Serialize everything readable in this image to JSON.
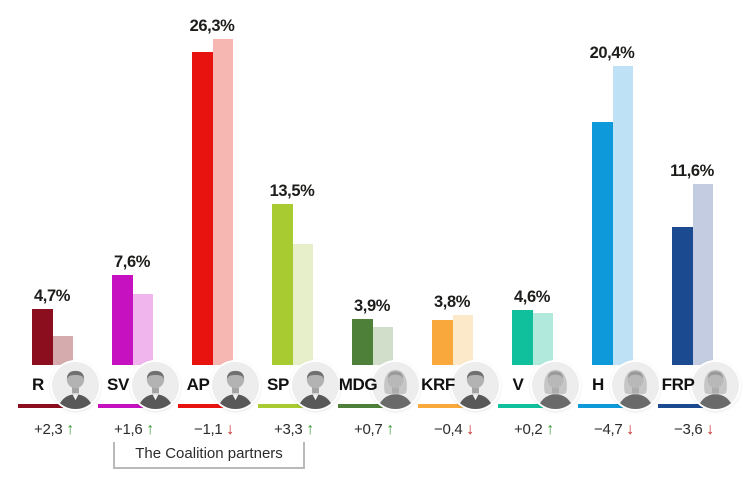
{
  "chart_data": {
    "type": "bar",
    "title": "",
    "unit": "%",
    "decimal_separator": ",",
    "layout": {
      "axes_visible": false,
      "grid": false,
      "legend": "none",
      "bars_per_group": 2,
      "bar_meaning": [
        "current poll value",
        "previous (lighter) value"
      ]
    },
    "ylim": [
      0,
      28
    ],
    "parties": [
      {
        "abbr": "R",
        "value": 4.7,
        "value_label": "4,7%",
        "previous": 2.4,
        "change_label": "+2,3",
        "trend": "up",
        "color": "#8b0e1e",
        "color_light": "#d6abae",
        "portrait": "man"
      },
      {
        "abbr": "SV",
        "value": 7.6,
        "value_label": "7,6%",
        "previous": 6.0,
        "change_label": "+1,6",
        "trend": "up",
        "color": "#c511c0",
        "color_light": "#f0b5ec",
        "portrait": "man"
      },
      {
        "abbr": "AP",
        "value": 26.3,
        "value_label": "26,3%",
        "previous": 27.4,
        "change_label": "−1,1",
        "trend": "down",
        "color": "#e8130f",
        "color_light": "#f6b7b2",
        "portrait": "man"
      },
      {
        "abbr": "SP",
        "value": 13.5,
        "value_label": "13,5%",
        "previous": 10.2,
        "change_label": "+3,3",
        "trend": "up",
        "color": "#a8cb32",
        "color_light": "#e6efc9",
        "portrait": "man"
      },
      {
        "abbr": "MDG",
        "value": 3.9,
        "value_label": "3,9%",
        "previous": 3.2,
        "change_label": "+0,7",
        "trend": "up",
        "color": "#4e8039",
        "color_light": "#d0deca",
        "portrait": "woman"
      },
      {
        "abbr": "KRF",
        "value": 3.8,
        "value_label": "3,8%",
        "previous": 4.2,
        "change_label": "−0,4",
        "trend": "down",
        "color": "#f9a93c",
        "color_light": "#fce9c9",
        "portrait": "man"
      },
      {
        "abbr": "V",
        "value": 4.6,
        "value_label": "4,6%",
        "previous": 4.4,
        "change_label": "+0,2",
        "trend": "up",
        "color": "#10bf9b",
        "color_light": "#b1eadc",
        "portrait": "woman"
      },
      {
        "abbr": "H",
        "value": 20.4,
        "value_label": "20,4%",
        "previous": 25.1,
        "change_label": "−4,7",
        "trend": "down",
        "color": "#0e9ada",
        "color_light": "#bfe1f6",
        "portrait": "woman"
      },
      {
        "abbr": "FRP",
        "value": 11.6,
        "value_label": "11,6%",
        "previous": 15.2,
        "change_label": "−3,6",
        "trend": "down",
        "color": "#1c4a90",
        "color_light": "#c3cce1",
        "portrait": "woman"
      }
    ],
    "annotation": {
      "text": "The Coalition partners",
      "parties": [
        "SV",
        "AP",
        "SP"
      ]
    },
    "trend_colors": {
      "up": "#3c9935",
      "down": "#cc2a26"
    },
    "trend_arrows": {
      "up": "↑",
      "down": "↓"
    }
  }
}
